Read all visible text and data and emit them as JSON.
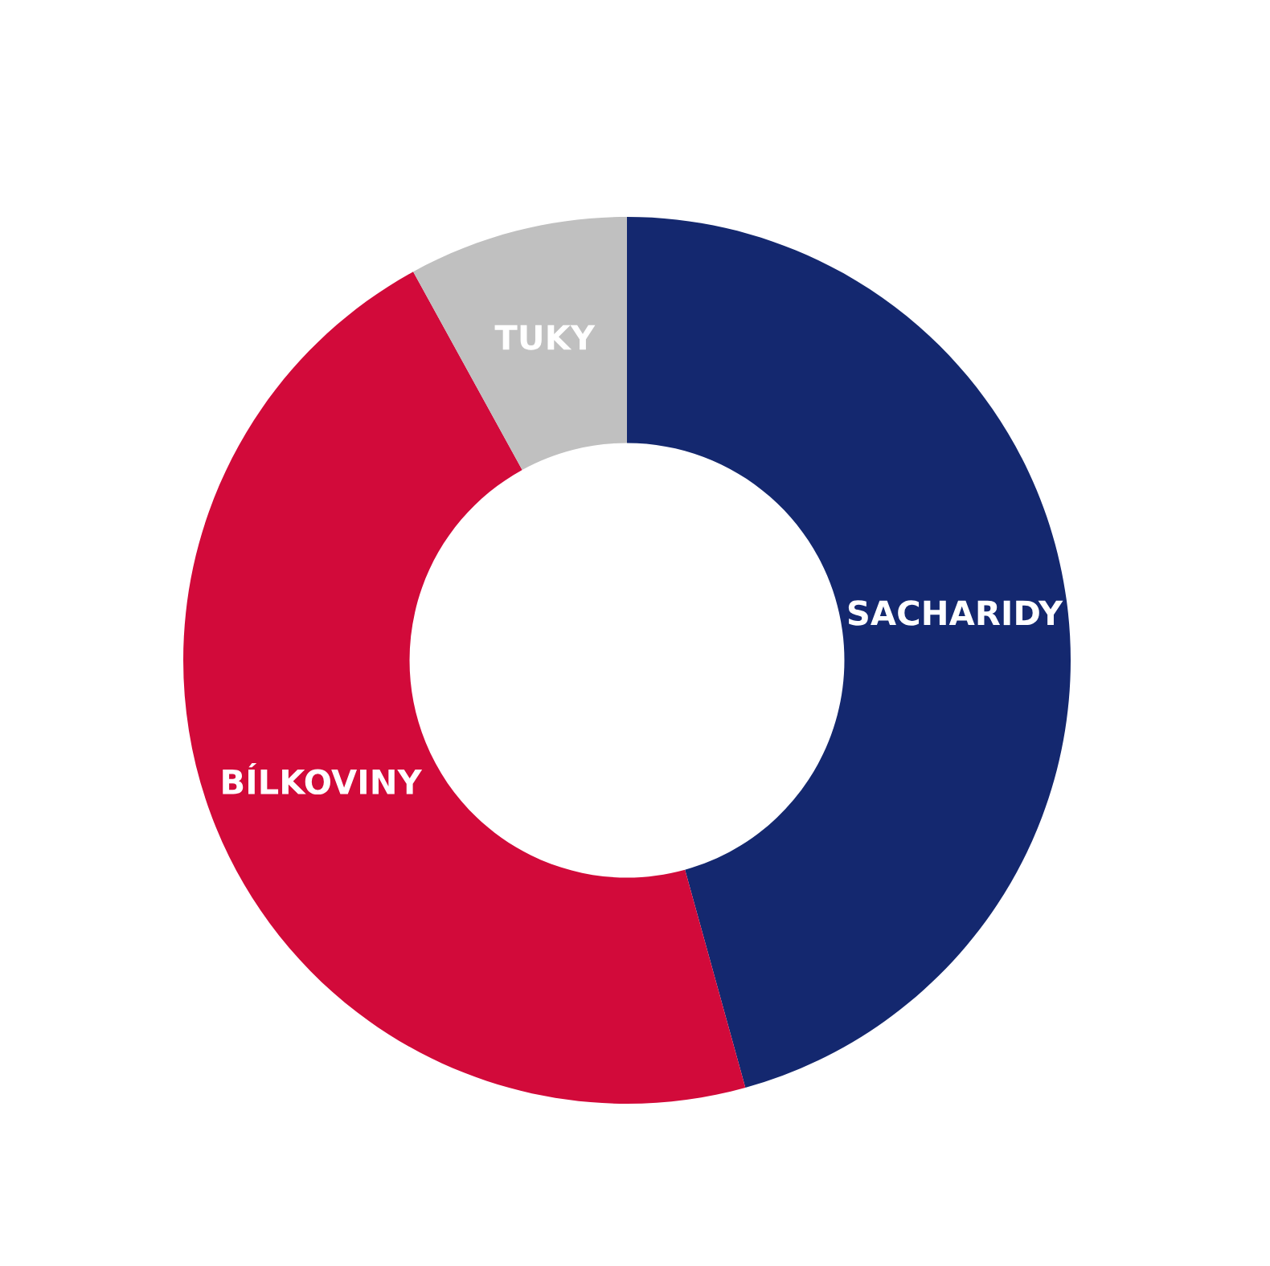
{
  "chart_data": {
    "type": "donut",
    "categories": [
      "SACHARIDY",
      "BÍLKOVINY",
      "TUKY"
    ],
    "values": [
      45.7,
      46.3,
      8.0
    ],
    "colors": [
      "#14286f",
      "#d20a3a",
      "#c0c0c0"
    ]
  }
}
